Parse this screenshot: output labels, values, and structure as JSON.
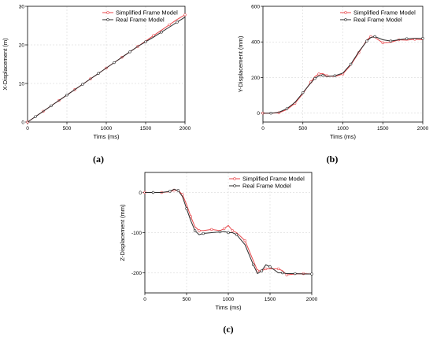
{
  "colors": {
    "simplified": "#e8474b",
    "real": "#2b2b2b"
  },
  "chart_data": [
    {
      "type": "line",
      "caption": "(a)",
      "xlabel": "Tims (ms)",
      "ylabel": "X-Displacement (m)",
      "xlim": [
        0,
        2000
      ],
      "ylim": [
        0,
        30
      ],
      "xticks": [
        0,
        500,
        1000,
        1500,
        2000
      ],
      "yticks": [
        0,
        10,
        20,
        30
      ],
      "grid": true,
      "legend": "top-right",
      "series": [
        {
          "name": "Simplified Frame Model",
          "x": [
            0,
            100,
            200,
            300,
            400,
            500,
            600,
            700,
            800,
            900,
            1000,
            1100,
            1200,
            1300,
            1400,
            1500,
            1600,
            1700,
            1800,
            1900,
            2000
          ],
          "y": [
            0,
            1.4,
            2.8,
            4.2,
            5.6,
            7.0,
            8.4,
            9.8,
            11.2,
            12.6,
            14.0,
            15.4,
            16.8,
            18.2,
            19.6,
            21.0,
            22.4,
            23.8,
            25.2,
            26.6,
            27.8
          ]
        },
        {
          "name": "Real Frame Model",
          "x": [
            0,
            100,
            200,
            300,
            400,
            500,
            600,
            700,
            800,
            900,
            1000,
            1100,
            1200,
            1300,
            1400,
            1500,
            1600,
            1700,
            1800,
            1900,
            2000
          ],
          "y": [
            0,
            1.4,
            2.8,
            4.2,
            5.6,
            7.0,
            8.4,
            9.8,
            11.2,
            12.6,
            14.0,
            15.4,
            16.8,
            18.2,
            19.6,
            20.8,
            22.0,
            23.3,
            24.6,
            25.9,
            27.2
          ]
        }
      ]
    },
    {
      "type": "line",
      "caption": "(b)",
      "xlabel": "Tims (ms)",
      "ylabel": "Y-Displacement (mm)",
      "xlim": [
        0,
        2000
      ],
      "ylim": [
        -50,
        600
      ],
      "xticks": [
        0,
        500,
        1000,
        1500,
        2000
      ],
      "yticks": [
        0,
        200,
        400,
        600
      ],
      "grid": true,
      "legend": "top-right",
      "series": [
        {
          "name": "Simplified Frame Model",
          "x": [
            0,
            100,
            200,
            300,
            400,
            500,
            600,
            650,
            700,
            750,
            800,
            900,
            1000,
            1100,
            1200,
            1300,
            1350,
            1400,
            1500,
            1600,
            1700,
            1800,
            1900,
            2000
          ],
          "y": [
            0,
            0,
            2,
            20,
            55,
            110,
            175,
            205,
            220,
            222,
            210,
            205,
            220,
            270,
            340,
            410,
            430,
            425,
            395,
            398,
            412,
            410,
            415,
            412
          ]
        },
        {
          "name": "Real Frame Model",
          "x": [
            0,
            100,
            200,
            300,
            400,
            500,
            600,
            650,
            700,
            750,
            800,
            900,
            1000,
            1100,
            1200,
            1300,
            1350,
            1400,
            1500,
            1600,
            1700,
            1800,
            1900,
            2000
          ],
          "y": [
            0,
            0,
            5,
            25,
            60,
            115,
            170,
            195,
            210,
            212,
            205,
            210,
            225,
            275,
            345,
            405,
            425,
            430,
            412,
            405,
            412,
            418,
            420,
            420
          ]
        }
      ]
    },
    {
      "type": "line",
      "caption": "(c)",
      "xlabel": "Tims (ms)",
      "ylabel": "Z-Displacement (mm)",
      "xlim": [
        0,
        2000
      ],
      "ylim": [
        -250,
        50
      ],
      "xticks": [
        0,
        500,
        1000,
        1500,
        2000
      ],
      "yticks": [
        0,
        -100,
        -200
      ],
      "grid": true,
      "legend": "top-right",
      "series": [
        {
          "name": "Simplified Frame Model",
          "x": [
            0,
            100,
            200,
            300,
            350,
            400,
            450,
            500,
            550,
            600,
            650,
            700,
            800,
            900,
            950,
            1000,
            1050,
            1100,
            1200,
            1300,
            1350,
            1400,
            1450,
            1500,
            1600,
            1650,
            1700,
            1800,
            1900,
            2000
          ],
          "y": [
            0,
            0,
            0,
            2,
            6,
            5,
            -5,
            -30,
            -60,
            -85,
            -95,
            -95,
            -92,
            -95,
            -90,
            -82,
            -95,
            -100,
            -120,
            -170,
            -195,
            -195,
            -190,
            -190,
            -190,
            -195,
            -205,
            -203,
            -202,
            -203
          ]
        },
        {
          "name": "Real Frame Model",
          "x": [
            0,
            100,
            200,
            300,
            350,
            400,
            450,
            500,
            550,
            600,
            650,
            700,
            800,
            900,
            950,
            1000,
            1050,
            1100,
            1200,
            1300,
            1350,
            1400,
            1450,
            1500,
            1600,
            1650,
            1700,
            1800,
            1900,
            2000
          ],
          "y": [
            0,
            0,
            0,
            3,
            8,
            5,
            -10,
            -40,
            -70,
            -95,
            -105,
            -102,
            -100,
            -98,
            -97,
            -100,
            -100,
            -105,
            -130,
            -180,
            -202,
            -195,
            -180,
            -185,
            -200,
            -200,
            -202,
            -202,
            -203,
            -203
          ]
        }
      ]
    }
  ]
}
